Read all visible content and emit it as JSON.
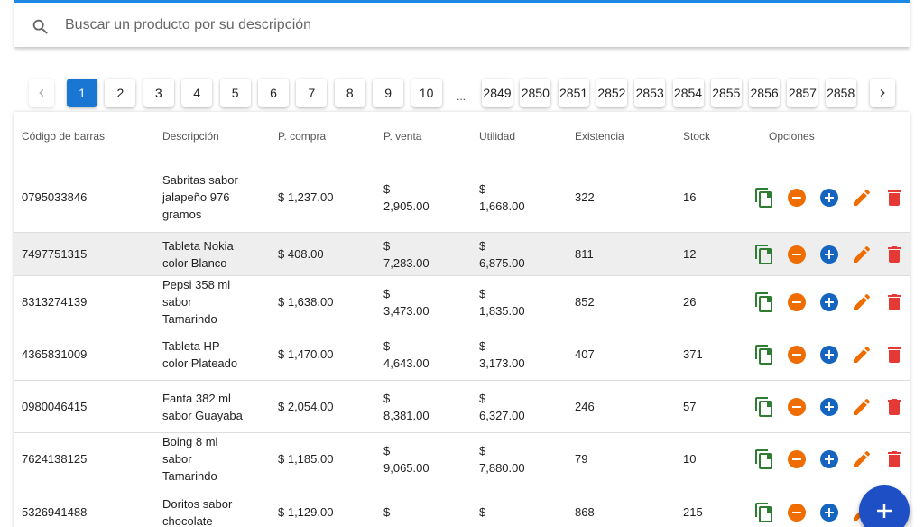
{
  "search": {
    "placeholder": "Buscar un producto por su descripción"
  },
  "pagination": {
    "pages": [
      "1",
      "2",
      "3",
      "4",
      "5",
      "6",
      "7",
      "8",
      "9",
      "10"
    ],
    "ellipsis": "...",
    "last_pages": [
      "2849",
      "2850",
      "2851",
      "2852",
      "2853",
      "2854",
      "2855",
      "2856",
      "2857",
      "2858"
    ]
  },
  "table": {
    "headers": [
      "Código de barras",
      "Descripción",
      "P. compra",
      "P. venta",
      "Utilidad",
      "Existencia",
      "Stock",
      "Opciones"
    ],
    "rows": [
      [
        "0795033846",
        "Sabritas sabor jalapeño 976 gramos",
        "$ 1,237.00",
        "$ 2,905.00",
        "$ 1,668.00",
        "322",
        "16"
      ],
      [
        "7497751315",
        "Tableta Nokia color Blanco",
        "$ 408.00",
        "$ 7,283.00",
        "$ 6,875.00",
        "811",
        "12"
      ],
      [
        "8313274139",
        "Pepsi 358 ml sabor Tamarindo",
        "$ 1,638.00",
        "$ 3,473.00",
        "$ 1,835.00",
        "852",
        "26"
      ],
      [
        "4365831009",
        "Tableta HP color Plateado",
        "$ 1,470.00",
        "$ 4,643.00",
        "$ 3,173.00",
        "407",
        "371"
      ],
      [
        "0980046415",
        "Fanta 382 ml sabor Guayaba",
        "$ 2,054.00",
        "$ 8,381.00",
        "$ 6,327.00",
        "246",
        "57"
      ],
      [
        "7624138125",
        "Boing 8 ml sabor Tamarindo",
        "$ 1,185.00",
        "$ 9,065.00",
        "$ 7,880.00",
        "79",
        "10"
      ],
      [
        "5326941488",
        "Doritos sabor chocolate",
        "$ 1,129.00",
        "$",
        "$",
        "868",
        "215"
      ]
    ]
  }
}
